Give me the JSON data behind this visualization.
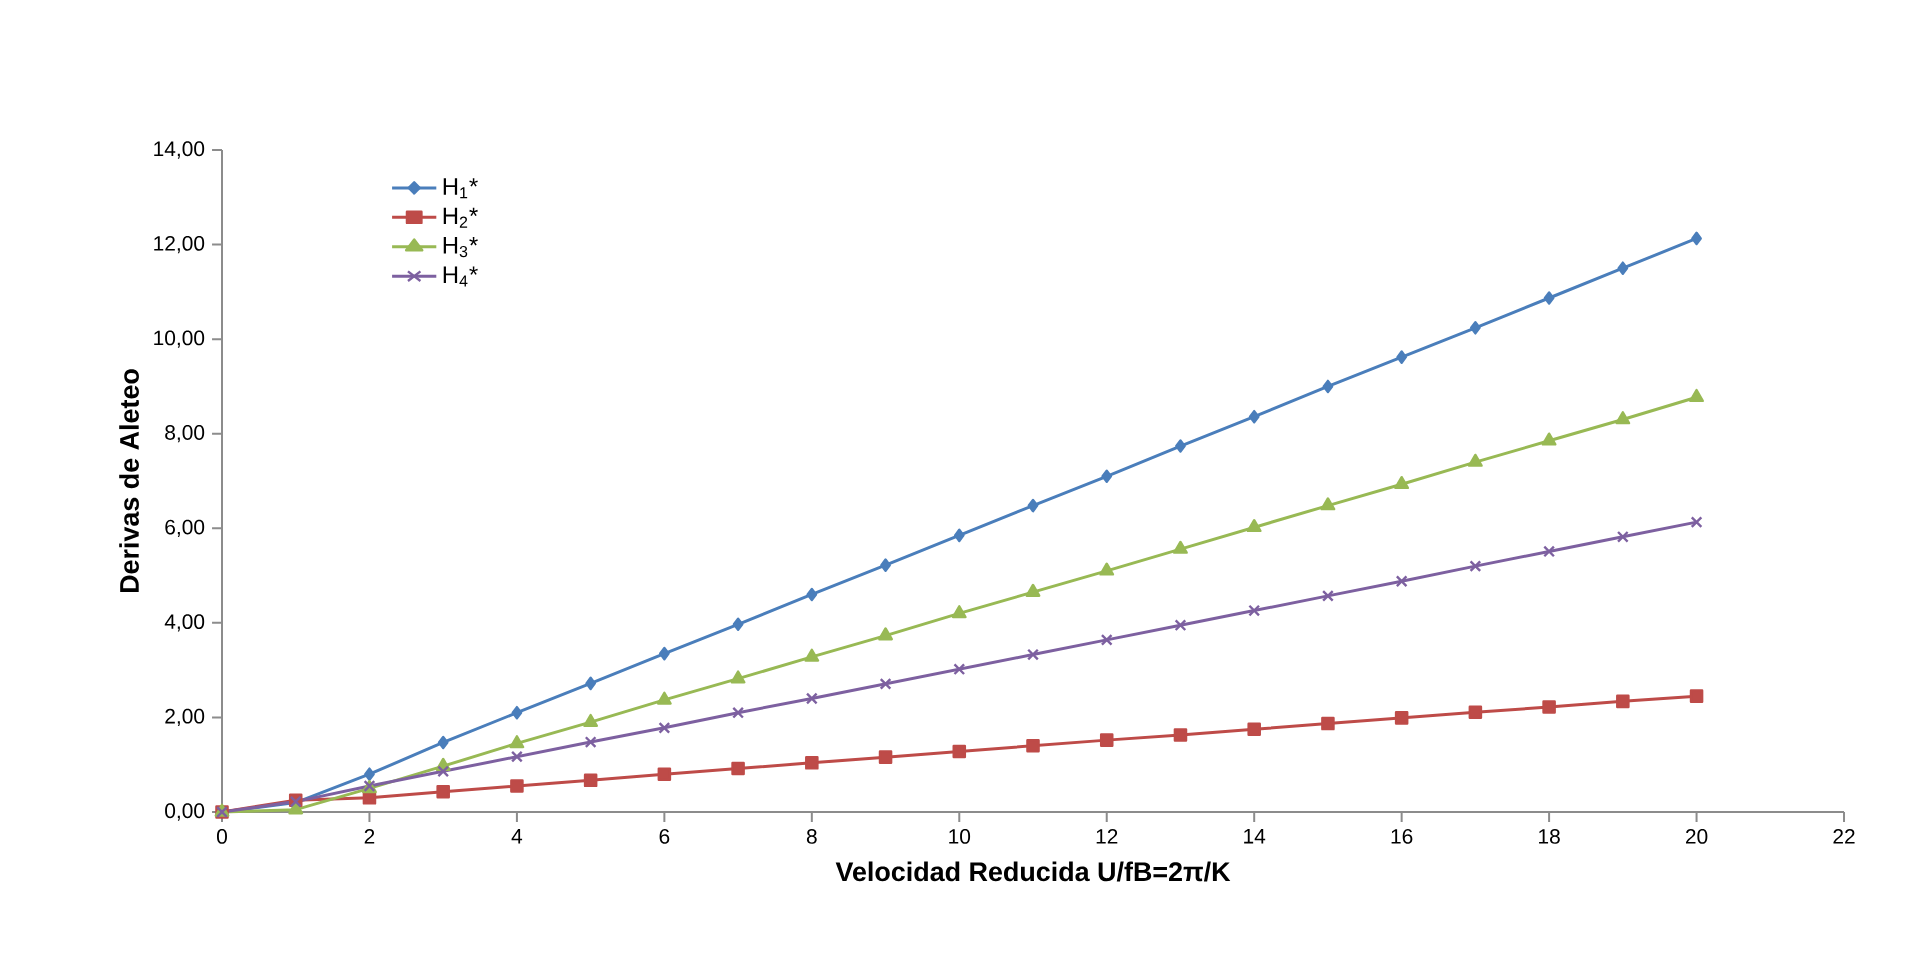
{
  "chart_data": {
    "type": "line",
    "xlabel": "Velocidad Reducida U/fB=2π/K",
    "ylabel": "Derivas de Aleteo",
    "xlim": [
      0,
      22
    ],
    "ylim": [
      0,
      14
    ],
    "xticks": [
      0,
      2,
      4,
      6,
      8,
      10,
      12,
      14,
      16,
      18,
      20,
      22
    ],
    "yticks": [
      {
        "value": 0,
        "label": "0,00"
      },
      {
        "value": 2,
        "label": "2,00"
      },
      {
        "value": 4,
        "label": "4,00"
      },
      {
        "value": 6,
        "label": "6,00"
      },
      {
        "value": 8,
        "label": "8,00"
      },
      {
        "value": 10,
        "label": "10,00"
      },
      {
        "value": 12,
        "label": "12,00"
      },
      {
        "value": 14,
        "label": "14,00"
      }
    ],
    "x": [
      0,
      1,
      2,
      3,
      4,
      5,
      6,
      7,
      8,
      9,
      10,
      11,
      12,
      13,
      14,
      15,
      16,
      17,
      18,
      19,
      20
    ],
    "legend": "top left",
    "line_style": "solid",
    "series": [
      {
        "name": "H$_{1}$*",
        "color": "#4a7ebb",
        "marker": "diamond",
        "values": [
          0,
          0.2,
          0.8,
          1.47,
          2.1,
          2.72,
          3.35,
          3.97,
          4.6,
          5.22,
          5.85,
          6.48,
          7.1,
          7.74,
          8.36,
          9.0,
          9.62,
          10.24,
          10.87,
          11.5,
          12.13
        ]
      },
      {
        "name": "H$_{2}$*",
        "color": "#be4b48",
        "marker": "square",
        "values": [
          0,
          0.25,
          0.3,
          0.43,
          0.55,
          0.67,
          0.8,
          0.92,
          1.04,
          1.16,
          1.28,
          1.4,
          1.52,
          1.63,
          1.75,
          1.87,
          1.99,
          2.11,
          2.22,
          2.34,
          2.45
        ]
      },
      {
        "name": "H$_{3}$*",
        "color": "#98b954",
        "marker": "triangle",
        "values": [
          0,
          0.05,
          0.5,
          0.97,
          1.45,
          1.9,
          2.37,
          2.82,
          3.28,
          3.73,
          4.2,
          4.65,
          5.1,
          5.56,
          6.02,
          6.48,
          6.93,
          7.4,
          7.85,
          8.3,
          8.77
        ]
      },
      {
        "name": "H$_{4}$*",
        "color": "#7d60a0",
        "marker": "cross",
        "values": [
          0,
          0.22,
          0.55,
          0.86,
          1.17,
          1.48,
          1.78,
          2.1,
          2.4,
          2.71,
          3.02,
          3.33,
          3.64,
          3.95,
          4.26,
          4.57,
          4.88,
          5.2,
          5.51,
          5.82,
          6.13
        ]
      }
    ]
  }
}
